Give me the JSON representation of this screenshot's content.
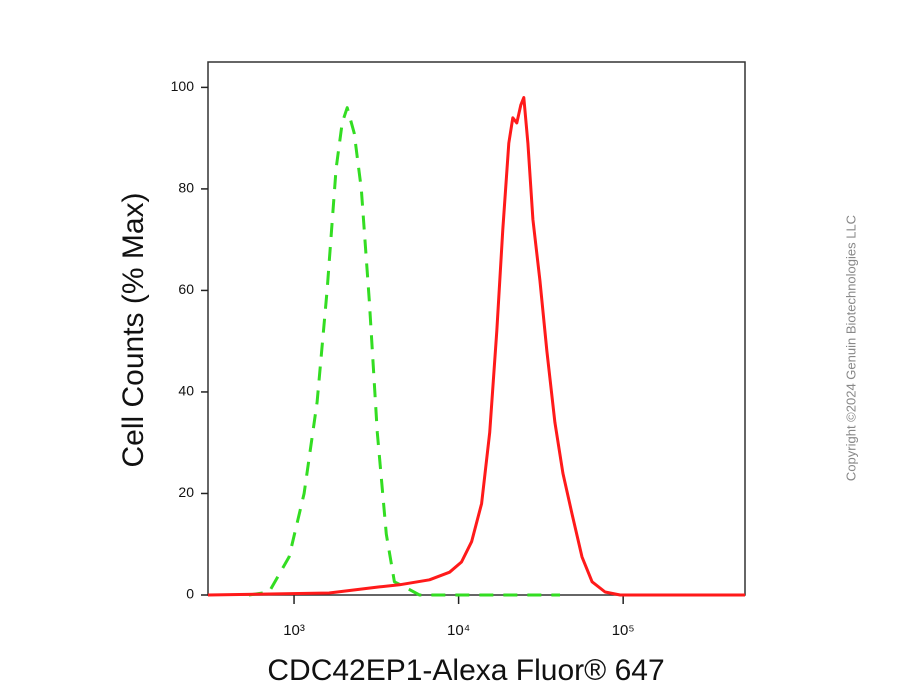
{
  "chart_data": {
    "type": "line",
    "x_label": "CDC42EP1-Alexa Fluor® 647",
    "y_label": "Cell Counts (% Max)",
    "annotation": "Copyright ©2024 Genuin Biotechnologies LLC",
    "x_scale": "log",
    "xlim": [
      300,
      550000
    ],
    "xticks": [
      {
        "value": 1000,
        "label": "10³"
      },
      {
        "value": 10000,
        "label": "10⁴"
      },
      {
        "value": 100000,
        "label": "10⁵"
      }
    ],
    "ylim": [
      0,
      105
    ],
    "yticks": [
      0,
      20,
      40,
      60,
      80,
      100
    ],
    "grid": false,
    "series": [
      {
        "color": "#33dd22",
        "line_style": "dashed",
        "x": [
          532,
          705,
          933,
          1151,
          1380,
          1589,
          1802,
          1962,
          2104,
          2321,
          2563,
          2866,
          3207,
          3638,
          4073,
          4688,
          5783,
          41300
        ],
        "values": [
          0,
          0.6,
          7.5,
          20,
          38,
          60,
          84,
          93,
          96,
          91,
          80,
          58,
          32,
          12,
          2.6,
          1.6,
          0,
          0
        ]
      },
      {
        "color": "#ff1a1a",
        "line_style": "solid",
        "x": [
          300,
          1633,
          3296,
          4365,
          6653,
          8810,
          10420,
          11990,
          13800,
          15450,
          17060,
          18550,
          20180,
          21340,
          22580,
          23880,
          24900,
          26360,
          28270,
          31190,
          34400,
          38490,
          43060,
          48870,
          56230,
          64740,
          77660,
          95940,
          550000
        ],
        "values": [
          0,
          0.4,
          1.6,
          2,
          3,
          4.5,
          6.5,
          10.5,
          18,
          32,
          52,
          72,
          89,
          94,
          93,
          96.5,
          98,
          89,
          74,
          62,
          48,
          34,
          24,
          16,
          7.5,
          2.6,
          0.6,
          0,
          0
        ]
      }
    ]
  }
}
